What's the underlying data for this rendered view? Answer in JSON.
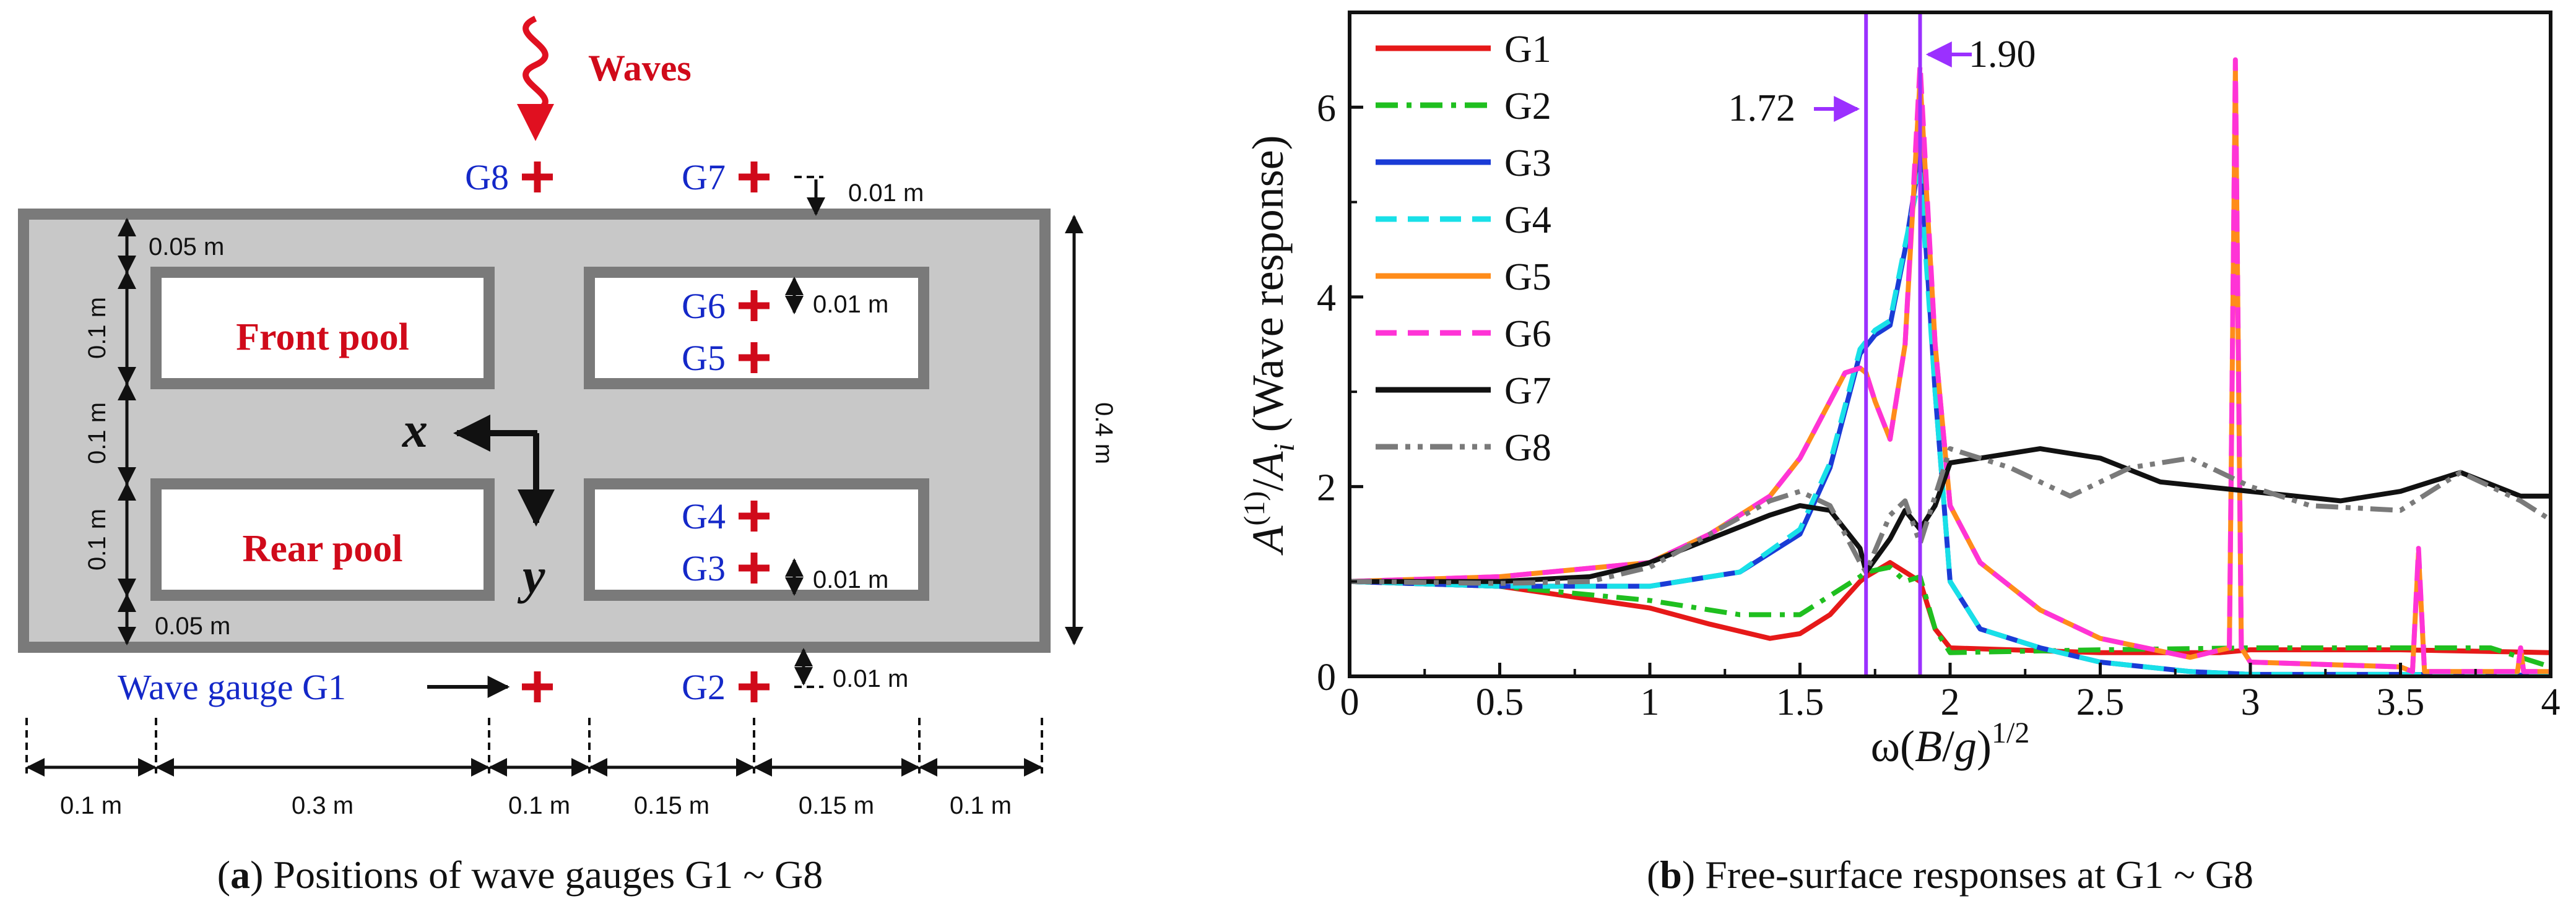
{
  "panel_a": {
    "caption_letter": "a",
    "caption_text": "Positions of wave gauges G1 ~ G8",
    "waves_label": "Waves",
    "front_pool_label": "Front pool",
    "rear_pool_label": "Rear pool",
    "axis_x_label": "x",
    "axis_y_label": "y",
    "gauge_g1_label": "Wave gauge G1",
    "gauge_labels": [
      "G2",
      "G3",
      "G4",
      "G5",
      "G6",
      "G7",
      "G8"
    ],
    "dimensions": {
      "top_gap": "0.05 m",
      "bottom_gap": "0.05 m",
      "left_v1": "0.1 m",
      "left_v2": "0.1 m",
      "left_v3": "0.1 m",
      "right_total": "0.4 m",
      "g7_offset": "0.01 m",
      "g6_offset": "0.01 m",
      "g3_offset": "0.01 m",
      "g2_offset": "0.01 m",
      "bottom_segments": [
        "0.1 m",
        "0.3 m",
        "0.1 m",
        "0.15 m",
        "0.15 m",
        "0.1 m"
      ]
    },
    "colors": {
      "label_red": "#d00a1a",
      "label_blue": "#1428c8",
      "tank_gray": "#c8c8c8",
      "wall_gray": "#7a7a7a"
    }
  },
  "panel_b": {
    "caption_letter": "b",
    "caption_text": "Free-surface responses at G1 ~ G8",
    "annotation_172": "1.72",
    "annotation_190": "1.90"
  },
  "chart_data": {
    "type": "line",
    "title": "Free-surface responses at G1 ~ G8",
    "xlabel": "ω(B/g)^1/2",
    "ylabel": "A(1)/Ai (Wave response)",
    "xlim": [
      0,
      4
    ],
    "ylim": [
      0,
      7
    ],
    "xticks": [
      "0",
      "0.5",
      "1",
      "1.5",
      "2",
      "2.5",
      "3",
      "3.5",
      "4"
    ],
    "yticks": [
      "0",
      "2",
      "4",
      "6"
    ],
    "legend_position": "top-left",
    "vertical_lines": [
      1.72,
      1.9
    ],
    "series": [
      {
        "name": "G1",
        "color": "#e61919",
        "dash": "solid",
        "x": [
          0,
          0.5,
          1.0,
          1.2,
          1.4,
          1.5,
          1.6,
          1.7,
          1.72,
          1.8,
          1.85,
          1.9,
          1.95,
          2.0,
          2.5,
          2.9,
          3.0,
          3.5,
          4.0
        ],
        "y": [
          1.0,
          0.95,
          0.72,
          0.55,
          0.4,
          0.45,
          0.65,
          1.0,
          1.05,
          1.2,
          1.1,
          1.0,
          0.5,
          0.3,
          0.25,
          0.25,
          0.28,
          0.28,
          0.25
        ]
      },
      {
        "name": "G2",
        "color": "#1fbf1f",
        "dash": "dashdot",
        "x": [
          0,
          0.5,
          1.0,
          1.3,
          1.5,
          1.6,
          1.7,
          1.72,
          1.8,
          1.85,
          1.9,
          1.95,
          2.0,
          2.5,
          3.0,
          3.5,
          3.8,
          4.0
        ],
        "y": [
          1.0,
          0.95,
          0.8,
          0.65,
          0.65,
          0.85,
          1.05,
          1.1,
          1.15,
          1.0,
          1.05,
          0.5,
          0.25,
          0.28,
          0.3,
          0.3,
          0.3,
          0.1
        ]
      },
      {
        "name": "G3",
        "color": "#1a3bd6",
        "dash": "solid",
        "x": [
          0,
          0.5,
          1.0,
          1.3,
          1.5,
          1.6,
          1.7,
          1.75,
          1.8,
          1.85,
          1.9,
          1.95,
          2.0,
          2.1,
          2.3,
          2.5,
          2.8,
          3.0,
          3.5,
          4.0
        ],
        "y": [
          1.0,
          0.95,
          0.95,
          1.1,
          1.5,
          2.2,
          3.4,
          3.6,
          3.7,
          4.5,
          5.5,
          3.0,
          1.0,
          0.5,
          0.3,
          0.15,
          0.05,
          0.02,
          0.02,
          0.01
        ]
      },
      {
        "name": "G4",
        "color": "#18e0e8",
        "dash": "dashed",
        "x": [
          0,
          0.5,
          1.0,
          1.3,
          1.5,
          1.6,
          1.7,
          1.75,
          1.8,
          1.85,
          1.9,
          1.95,
          2.0,
          2.1,
          2.3,
          2.5,
          2.8,
          3.0,
          3.5,
          4.0
        ],
        "y": [
          1.0,
          0.95,
          0.95,
          1.1,
          1.55,
          2.25,
          3.45,
          3.65,
          3.75,
          4.55,
          5.3,
          3.0,
          1.0,
          0.5,
          0.3,
          0.15,
          0.05,
          0.02,
          0.02,
          0.01
        ]
      },
      {
        "name": "G5",
        "color": "#ff8c1a",
        "dash": "solid",
        "x": [
          0,
          0.5,
          1.0,
          1.2,
          1.4,
          1.5,
          1.6,
          1.65,
          1.7,
          1.72,
          1.75,
          1.8,
          1.85,
          1.9,
          1.95,
          2.0,
          2.1,
          2.3,
          2.5,
          2.8,
          2.93,
          2.95,
          2.97,
          3.0,
          3.5,
          3.54,
          3.56,
          3.58,
          3.8,
          3.89,
          3.9,
          3.91,
          4.0
        ],
        "y": [
          1.0,
          1.05,
          1.2,
          1.5,
          1.9,
          2.3,
          2.9,
          3.2,
          3.25,
          3.2,
          2.9,
          2.5,
          3.5,
          6.3,
          3.5,
          1.8,
          1.2,
          0.7,
          0.4,
          0.2,
          0.3,
          6.4,
          0.3,
          0.15,
          0.1,
          0.05,
          1.3,
          0.05,
          0.05,
          0.05,
          0.3,
          0.05,
          0.05
        ]
      },
      {
        "name": "G6",
        "color": "#ff33d6",
        "dash": "dashed",
        "x": [
          0,
          0.5,
          1.0,
          1.2,
          1.4,
          1.5,
          1.6,
          1.65,
          1.7,
          1.72,
          1.75,
          1.8,
          1.85,
          1.9,
          1.95,
          2.0,
          2.1,
          2.3,
          2.5,
          2.8,
          2.93,
          2.95,
          2.97,
          3.0,
          3.5,
          3.54,
          3.56,
          3.58,
          3.8,
          3.89,
          3.9,
          3.91,
          4.0
        ],
        "y": [
          1.0,
          1.05,
          1.2,
          1.5,
          1.9,
          2.3,
          2.9,
          3.2,
          3.25,
          3.2,
          2.9,
          2.5,
          3.5,
          6.45,
          3.5,
          1.8,
          1.2,
          0.7,
          0.4,
          0.2,
          0.3,
          6.5,
          0.3,
          0.15,
          0.1,
          0.05,
          1.35,
          0.05,
          0.05,
          0.05,
          0.3,
          0.05,
          0.05
        ]
      },
      {
        "name": "G7",
        "color": "#111111",
        "dash": "solid",
        "x": [
          0,
          0.5,
          0.8,
          1.0,
          1.2,
          1.4,
          1.5,
          1.6,
          1.7,
          1.72,
          1.8,
          1.85,
          1.9,
          1.95,
          2.0,
          2.1,
          2.3,
          2.5,
          2.7,
          3.0,
          3.3,
          3.5,
          3.7,
          3.9,
          4.0
        ],
        "y": [
          1.0,
          1.0,
          1.05,
          1.2,
          1.45,
          1.7,
          1.8,
          1.75,
          1.35,
          1.1,
          1.45,
          1.75,
          1.55,
          1.8,
          2.25,
          2.3,
          2.4,
          2.3,
          2.05,
          1.95,
          1.85,
          1.95,
          2.15,
          1.9,
          1.9
        ]
      },
      {
        "name": "G8",
        "color": "#7a7a7a",
        "dash": "dashdotdot",
        "x": [
          0,
          0.5,
          0.8,
          1.0,
          1.2,
          1.4,
          1.5,
          1.6,
          1.7,
          1.72,
          1.8,
          1.85,
          1.9,
          2.0,
          2.2,
          2.4,
          2.6,
          2.8,
          3.0,
          3.2,
          3.5,
          3.7,
          3.9,
          4.0
        ],
        "y": [
          1.0,
          0.98,
          1.0,
          1.15,
          1.5,
          1.85,
          1.95,
          1.8,
          1.2,
          1.1,
          1.7,
          1.85,
          1.4,
          2.4,
          2.2,
          1.9,
          2.2,
          2.3,
          2.0,
          1.8,
          1.75,
          2.15,
          1.85,
          1.65
        ]
      }
    ]
  }
}
